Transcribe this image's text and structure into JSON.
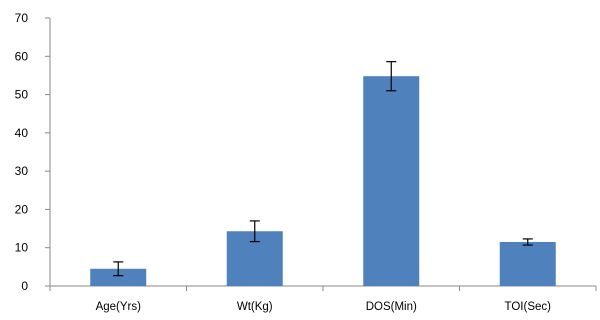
{
  "chart_data": {
    "type": "bar",
    "categories": [
      "Age(Yrs)",
      "Wt(Kg)",
      "DOS(Min)",
      "TOI(Sec)"
    ],
    "values": [
      4.5,
      14.3,
      54.8,
      11.5
    ],
    "error": [
      1.8,
      2.7,
      3.8,
      0.8
    ],
    "ylim": [
      0,
      70
    ],
    "yticks": [
      0,
      10,
      20,
      30,
      40,
      50,
      60,
      70
    ],
    "title": "",
    "xlabel": "",
    "ylabel": "",
    "legend": "none",
    "grid": false,
    "bar_color": "#4f81bd"
  }
}
